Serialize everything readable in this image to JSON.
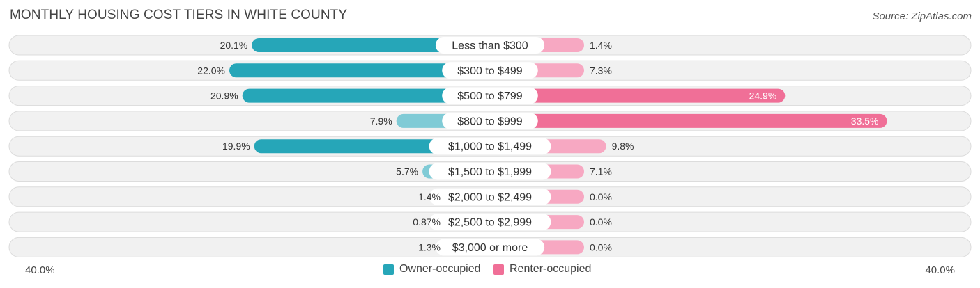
{
  "header": {
    "title": "MONTHLY HOUSING COST TIERS IN WHITE COUNTY",
    "source": "Source: ZipAtlas.com"
  },
  "colors": {
    "owner_strong": "#26a6b8",
    "owner_light": "#80cbd6",
    "renter_strong": "#f06f97",
    "renter_light": "#f7a8c2",
    "row_bg": "#f1f1f1",
    "row_border": "#dcdcdc"
  },
  "chart_data": {
    "type": "bar",
    "orientation": "horizontal-diverging",
    "title": "MONTHLY HOUSING COST TIERS IN WHITE COUNTY",
    "categories": [
      "Less than $300",
      "$300 to $499",
      "$500 to $799",
      "$800 to $999",
      "$1,000 to $1,499",
      "$1,500 to $1,999",
      "$2,000 to $2,499",
      "$2,500 to $2,999",
      "$3,000 or more"
    ],
    "series": [
      {
        "name": "Owner-occupied",
        "values": [
          20.1,
          22.0,
          20.9,
          7.9,
          19.9,
          5.7,
          1.4,
          0.87,
          1.3
        ],
        "labels": [
          "20.1%",
          "22.0%",
          "20.9%",
          "7.9%",
          "19.9%",
          "5.7%",
          "1.4%",
          "0.87%",
          "1.3%"
        ]
      },
      {
        "name": "Renter-occupied",
        "values": [
          1.4,
          7.3,
          24.9,
          33.5,
          9.8,
          7.1,
          0.0,
          0.0,
          0.0
        ],
        "labels": [
          "1.4%",
          "7.3%",
          "24.9%",
          "33.5%",
          "9.8%",
          "7.1%",
          "0.0%",
          "0.0%",
          "0.0%"
        ]
      }
    ],
    "xlim": [
      -40,
      40
    ],
    "axis_labels": {
      "left": "40.0%",
      "right": "40.0%"
    },
    "legend": {
      "position": "bottom-center",
      "items": [
        "Owner-occupied",
        "Renter-occupied"
      ]
    }
  }
}
